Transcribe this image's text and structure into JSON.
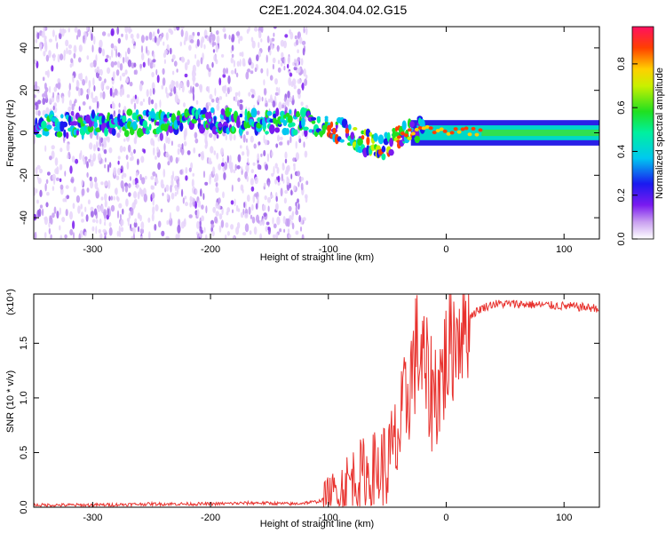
{
  "title": "C2E1.2024.304.04.02.G15",
  "chart_data": [
    {
      "type": "heatmap",
      "xlabel": "Height of straight line (km)",
      "ylabel": "Frequency (Hz)",
      "xlim": [
        -350,
        130
      ],
      "ylim": [
        -50,
        50
      ],
      "xticks": [
        -300,
        -200,
        -100,
        0,
        100
      ],
      "yticks": [
        -40,
        -20,
        0,
        20,
        40
      ],
      "colorbar": {
        "label": "Normalized spectral amplitude",
        "range": [
          0.0,
          0.97
        ],
        "ticks": [
          "0.0",
          "0.2",
          "0.4",
          "0.6",
          "0.8"
        ],
        "colormap": "rainbow"
      },
      "ridge": [
        {
          "x": -350,
          "y": 3
        },
        {
          "x": -300,
          "y": 4
        },
        {
          "x": -250,
          "y": 5
        },
        {
          "x": -200,
          "y": 6
        },
        {
          "x": -150,
          "y": 5
        },
        {
          "x": -120,
          "y": 5
        },
        {
          "x": -100,
          "y": 3
        },
        {
          "x": -85,
          "y": 0
        },
        {
          "x": -70,
          "y": -4
        },
        {
          "x": -55,
          "y": -7
        },
        {
          "x": -45,
          "y": -4
        },
        {
          "x": -35,
          "y": 0
        },
        {
          "x": -20,
          "y": 2
        },
        {
          "x": 0,
          "y": 1
        },
        {
          "x": 50,
          "y": 0
        },
        {
          "x": 130,
          "y": 0
        }
      ]
    },
    {
      "type": "line",
      "xlabel": "Height of straight line (km)",
      "ylabel": "SNR (10 * v/v)",
      "yscale_label": "(x10⁴)",
      "xlim": [
        -350,
        130
      ],
      "ylim": [
        0,
        1.95
      ],
      "xticks": [
        -300,
        -200,
        -100,
        0,
        100
      ],
      "yticks": [
        "0.0",
        "0.5",
        "1.0",
        "1.5"
      ],
      "series": [
        {
          "color": "#e8322e",
          "x": [
            -350,
            -300,
            -250,
            -200,
            -160,
            -130,
            -110,
            -100,
            -95,
            -90,
            -85,
            -80,
            -75,
            -70,
            -65,
            -60,
            -55,
            -50,
            -45,
            -40,
            -35,
            -30,
            -25,
            -20,
            -15,
            -10,
            -5,
            0,
            5,
            10,
            20,
            30,
            40,
            60,
            80,
            100,
            130
          ],
          "y": [
            0.02,
            0.02,
            0.03,
            0.03,
            0.04,
            0.03,
            0.05,
            0.08,
            0.12,
            0.16,
            0.22,
            0.25,
            0.28,
            0.3,
            0.28,
            0.32,
            0.35,
            0.38,
            0.5,
            0.65,
            0.9,
            1.2,
            1.45,
            1.3,
            1.1,
            1.05,
            1.15,
            1.35,
            1.5,
            1.65,
            1.75,
            1.82,
            1.86,
            1.86,
            1.85,
            1.84,
            1.82
          ]
        }
      ]
    }
  ]
}
